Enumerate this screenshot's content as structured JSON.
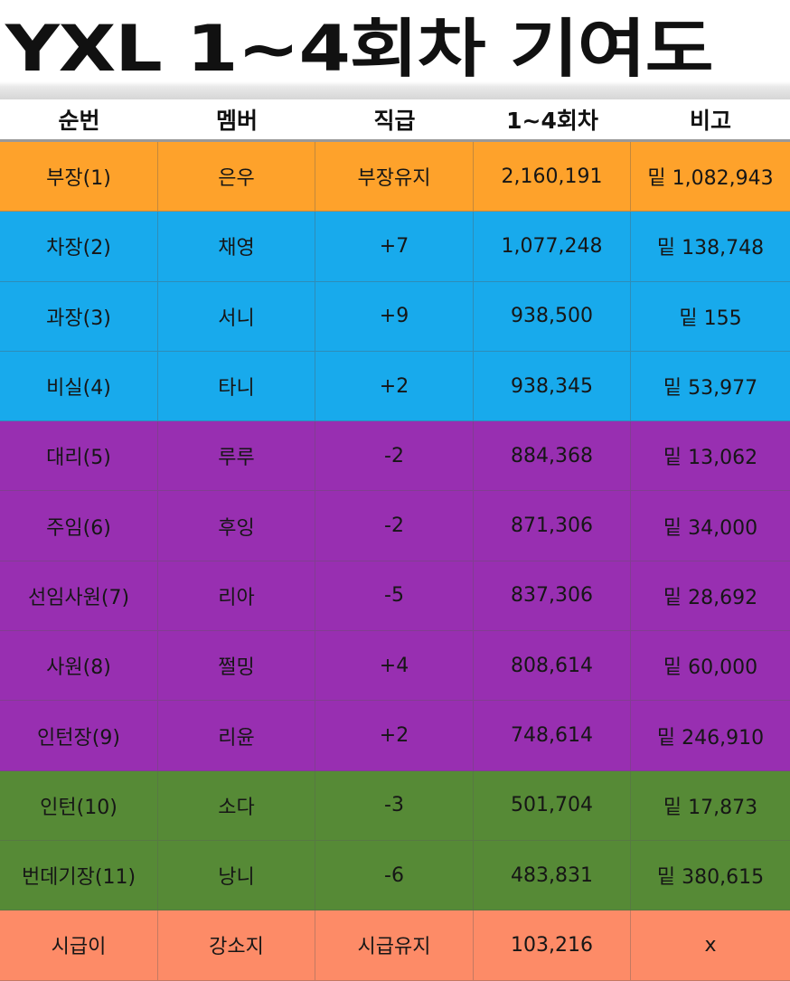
{
  "title": "YXL 1~4회차 기여도",
  "headers": [
    "순번",
    "멤버",
    "직급",
    "1~4회차",
    "비고"
  ],
  "colors": {
    "orange": "#fea22b",
    "blue": "#18aaec",
    "purple": "#982fb1",
    "green": "#568a36",
    "salmon": "#fd8b67"
  },
  "rows": [
    {
      "rank": "부장(1)",
      "member": "은우",
      "position": "부장유지",
      "score": "2,160,191",
      "note": "밑 1,082,943",
      "color": "#fea22b"
    },
    {
      "rank": "차장(2)",
      "member": "채영",
      "position": "+7",
      "score": "1,077,248",
      "note": "밑 138,748",
      "color": "#18aaec"
    },
    {
      "rank": "과장(3)",
      "member": "서니",
      "position": "+9",
      "score": "938,500",
      "note": "밑 155",
      "color": "#18aaec"
    },
    {
      "rank": "비실(4)",
      "member": "타니",
      "position": "+2",
      "score": "938,345",
      "note": "밑 53,977",
      "color": "#18aaec"
    },
    {
      "rank": "대리(5)",
      "member": "루루",
      "position": "-2",
      "score": "884,368",
      "note": "밑 13,062",
      "color": "#982fb1"
    },
    {
      "rank": "주임(6)",
      "member": "후잉",
      "position": "-2",
      "score": "871,306",
      "note": "밑 34,000",
      "color": "#982fb1"
    },
    {
      "rank": "선임사원(7)",
      "member": "리아",
      "position": "-5",
      "score": "837,306",
      "note": "밑 28,692",
      "color": "#982fb1"
    },
    {
      "rank": "사원(8)",
      "member": "쩔밍",
      "position": "+4",
      "score": "808,614",
      "note": "밑 60,000",
      "color": "#982fb1"
    },
    {
      "rank": "인턴장(9)",
      "member": "리윤",
      "position": "+2",
      "score": "748,614",
      "note": "밑 246,910",
      "color": "#982fb1"
    },
    {
      "rank": "인턴(10)",
      "member": "소다",
      "position": "-3",
      "score": "501,704",
      "note": "밑 17,873",
      "color": "#568a36"
    },
    {
      "rank": "번데기장(11)",
      "member": "낭니",
      "position": "-6",
      "score": "483,831",
      "note": "밑 380,615",
      "color": "#568a36"
    },
    {
      "rank": "시급이",
      "member": "강소지",
      "position": "시급유지",
      "score": "103,216",
      "note": "x",
      "color": "#fd8b67"
    }
  ]
}
